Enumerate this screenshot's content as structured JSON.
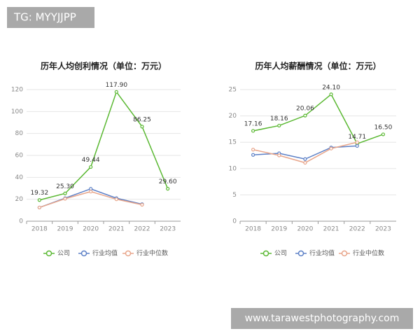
{
  "header": {
    "tag": "TG: MYYJJPP"
  },
  "chart_data": [
    {
      "type": "line",
      "title": "历年人均创利情况（单位：万元）",
      "categories": [
        "2018",
        "2019",
        "2020",
        "2021",
        "2022",
        "2023"
      ],
      "ylim": [
        0,
        120
      ],
      "yticks": [
        0,
        20,
        40,
        60,
        80,
        100,
        120
      ],
      "grid": true,
      "series": [
        {
          "name": "公司",
          "color": "#5ab832",
          "values": [
            19.32,
            25.3,
            49.44,
            117.9,
            86.25,
            29.6
          ],
          "value_labels": [
            "19.32",
            "25.30",
            "49.44",
            "117.90",
            "86.25",
            "29.60"
          ]
        },
        {
          "name": "行业均值",
          "color": "#5b7fc6",
          "values": [
            12.5,
            21,
            29.5,
            21,
            15.5,
            null
          ]
        },
        {
          "name": "行业中位数",
          "color": "#e8a58a",
          "values": [
            12.5,
            20.5,
            27,
            20,
            15,
            null
          ]
        }
      ]
    },
    {
      "type": "line",
      "title": "历年人均薪酬情况（单位：万元）",
      "categories": [
        "2018",
        "2019",
        "2020",
        "2021",
        "2022",
        "2023"
      ],
      "ylim": [
        0,
        25
      ],
      "yticks": [
        0,
        5,
        10,
        15,
        20,
        25
      ],
      "grid": true,
      "series": [
        {
          "name": "公司",
          "color": "#5ab832",
          "values": [
            17.16,
            18.16,
            20.06,
            24.1,
            14.71,
            16.5
          ],
          "value_labels": [
            "17.16",
            "18.16",
            "20.06",
            "24.10",
            "14.71",
            "16.50"
          ]
        },
        {
          "name": "行业均值",
          "color": "#5b7fc6",
          "values": [
            12.6,
            12.9,
            11.8,
            14.0,
            14.3,
            null
          ]
        },
        {
          "name": "行业中位数",
          "color": "#e8a58a",
          "values": [
            13.6,
            12.5,
            11.1,
            13.8,
            15.0,
            null
          ]
        }
      ]
    }
  ],
  "watermark": "www.tarawestphotography.com"
}
